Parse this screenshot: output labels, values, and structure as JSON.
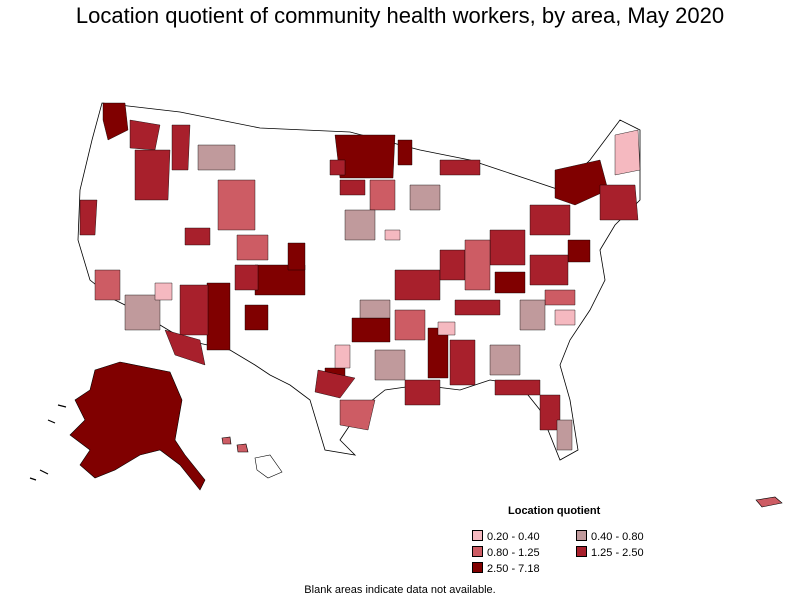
{
  "title": "Location quotient of community health workers, by area, May 2020",
  "legend": {
    "title": "Location quotient",
    "items": [
      {
        "label": "0.20 - 0.40",
        "color": "#f5b9c0"
      },
      {
        "label": "0.40 - 0.80",
        "color": "#c09a9c"
      },
      {
        "label": "0.80 - 1.25",
        "color": "#cd5c64"
      },
      {
        "label": "1.25 - 2.50",
        "color": "#a8202c"
      },
      {
        "label": "2.50 - 7.18",
        "color": "#800000"
      }
    ]
  },
  "footnote": "Blank areas indicate data not available.",
  "map_colors": {
    "blank": "#ffffff",
    "border": "#000000"
  }
}
